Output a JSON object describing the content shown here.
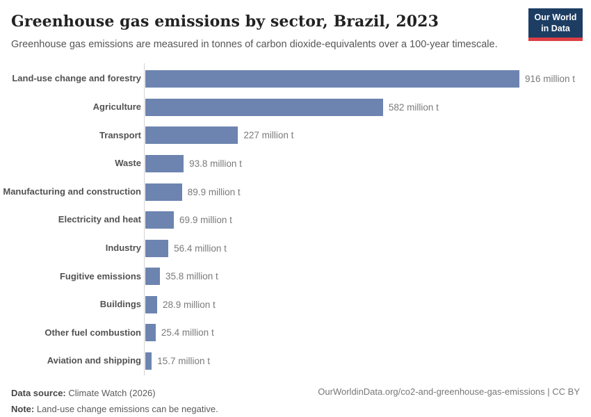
{
  "header": {
    "title": "Greenhouse gas emissions by sector, Brazil, 2023",
    "subtitle": "Greenhouse gas emissions are measured in tonnes of carbon dioxide-equivalents over a 100-year timescale."
  },
  "logo": {
    "line1": "Our World",
    "line2": "in Data",
    "bg_color": "#1d3d63",
    "accent_color": "#dc3e45"
  },
  "chart_data": {
    "type": "bar",
    "orientation": "horizontal",
    "title": "Greenhouse gas emissions by sector, Brazil, 2023",
    "unit": "million t",
    "value_suffix": " million t",
    "categories": [
      "Land-use change and forestry",
      "Agriculture",
      "Transport",
      "Waste",
      "Manufacturing and construction",
      "Electricity and heat",
      "Industry",
      "Fugitive emissions",
      "Buildings",
      "Other fuel combustion",
      "Aviation and shipping"
    ],
    "values": [
      916,
      582,
      227,
      93.8,
      89.9,
      69.9,
      56.4,
      35.8,
      28.9,
      25.4,
      15.7
    ],
    "xlim": [
      0,
      916
    ],
    "bar_color": "#6d84b0",
    "grid": false,
    "legend": "none"
  },
  "footer": {
    "source_label": "Data source:",
    "source_text": "Climate Watch (2026)",
    "note_label": "Note:",
    "note_text": "Land-use change emissions can be negative.",
    "right_text": "OurWorldinData.org/co2-and-greenhouse-gas-emissions | CC BY"
  }
}
